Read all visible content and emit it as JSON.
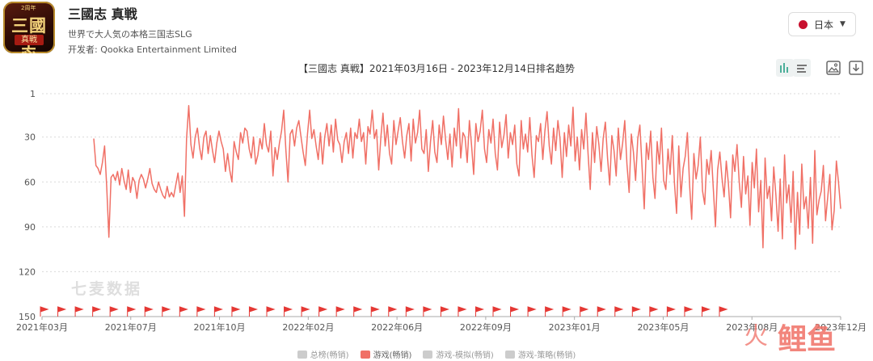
{
  "app": {
    "name": "三國志 真戦",
    "subtitle": "世界で大人気の本格三国志SLG",
    "developer": "开发者: Qookka Entertainment Limited",
    "icon_title": "三國志",
    "icon_sub": "真戦",
    "icon_badge": "2周年"
  },
  "country": {
    "label": "日本",
    "flag_color": "#c8102e"
  },
  "toolbar": {
    "active_color": "#4caf9a",
    "icons": [
      "bar-chart-icon",
      "list-icon",
      "image-icon",
      "download-icon"
    ]
  },
  "watermark": "七麦数据",
  "logo_text": "鲤鱼",
  "chart_data": {
    "type": "line",
    "title": "【三國志 真戦】2021年03月16日 - 2023年12月14日排名趋势",
    "y_inverted": true,
    "ylim": [
      1,
      150
    ],
    "yticks": [
      1,
      30,
      60,
      90,
      120,
      150
    ],
    "xticks": [
      "2021年03月",
      "2021年07月",
      "2021年10月",
      "2022年02月",
      "2022年06月",
      "2022年09月",
      "2023年01月",
      "2023年05月",
      "2023年08月",
      "2023年12月"
    ],
    "x_range": [
      "2021-03-16",
      "2023-12-14"
    ],
    "grid": true,
    "color": "#f07066",
    "series": [
      {
        "name": "游戏(畅销)",
        "values": [
          31,
          49,
          51,
          55,
          47,
          36,
          63,
          97,
          57,
          55,
          59,
          53,
          62,
          51,
          59,
          65,
          52,
          67,
          57,
          60,
          71,
          59,
          55,
          58,
          64,
          58,
          51,
          61,
          65,
          67,
          60,
          65,
          69,
          71,
          63,
          70,
          67,
          70,
          62,
          54,
          67,
          56,
          83,
          31,
          9,
          35,
          44,
          30,
          24,
          37,
          45,
          30,
          26,
          41,
          29,
          39,
          47,
          34,
          26,
          33,
          38,
          53,
          41,
          52,
          60,
          33,
          40,
          45,
          27,
          34,
          24,
          26,
          38,
          44,
          30,
          48,
          42,
          31,
          38,
          21,
          35,
          40,
          26,
          56,
          37,
          45,
          34,
          26,
          12,
          39,
          60,
          28,
          25,
          36,
          24,
          19,
          30,
          40,
          49,
          28,
          12,
          31,
          25,
          36,
          45,
          27,
          48,
          30,
          21,
          36,
          22,
          40,
          18,
          32,
          35,
          47,
          33,
          27,
          41,
          24,
          44,
          27,
          31,
          18,
          33,
          27,
          48,
          23,
          28,
          12,
          31,
          25,
          52,
          30,
          14,
          36,
          22,
          41,
          48,
          19,
          35,
          26,
          17,
          33,
          44,
          29,
          21,
          46,
          18,
          34,
          27,
          12,
          38,
          41,
          25,
          53,
          33,
          19,
          40,
          47,
          22,
          35,
          16,
          32,
          45,
          28,
          50,
          24,
          36,
          11,
          44,
          27,
          30,
          47,
          19,
          35,
          55,
          21,
          33,
          26,
          12,
          38,
          47,
          25,
          34,
          18,
          41,
          52,
          20,
          37,
          29,
          15,
          44,
          27,
          35,
          22,
          48,
          56,
          19,
          38,
          28,
          40,
          17,
          42,
          57,
          29,
          33,
          21,
          45,
          26,
          13,
          36,
          48,
          24,
          39,
          19,
          31,
          57,
          27,
          43,
          22,
          36,
          10,
          46,
          30,
          52,
          25,
          38,
          14,
          41,
          65,
          27,
          47,
          23,
          35,
          53,
          31,
          20,
          44,
          62,
          29,
          39,
          56,
          24,
          45,
          34,
          19,
          48,
          67,
          28,
          40,
          59,
          31,
          22,
          50,
          78,
          34,
          45,
          26,
          57,
          71,
          33,
          48,
          24,
          59,
          65,
          38,
          55,
          29,
          61,
          81,
          36,
          70,
          51,
          43,
          27,
          62,
          85,
          41,
          58,
          49,
          30,
          66,
          75,
          45,
          55,
          39,
          64,
          90,
          52,
          40,
          57,
          70,
          46,
          61,
          84,
          42,
          53,
          35,
          60,
          77,
          43,
          68,
          56,
          89,
          47,
          64,
          38,
          80,
          59,
          104,
          44,
          71,
          63,
          86,
          50,
          69,
          93,
          58,
          98,
          42,
          74,
          62,
          87,
          53,
          105,
          67,
          95,
          48,
          78,
          70,
          91,
          57,
          101,
          39,
          82,
          72,
          66,
          49,
          86,
          70,
          55,
          92,
          79,
          46,
          60,
          78
        ]
      }
    ]
  },
  "markers": {
    "color": "#e53935",
    "count": 40
  },
  "legend": [
    {
      "label": "总榜(畅销)",
      "color": "#cccccc"
    },
    {
      "label": "游戏(畅销)",
      "color": "#f07066"
    },
    {
      "label": "游戏-模拟(畅销)",
      "color": "#cccccc"
    },
    {
      "label": "游戏-策略(畅销)",
      "color": "#cccccc"
    }
  ]
}
